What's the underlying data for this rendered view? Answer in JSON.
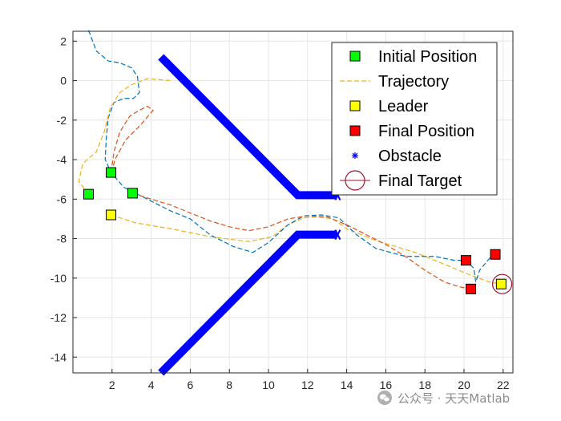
{
  "chart_data": {
    "type": "line",
    "title": "",
    "xlabel": "",
    "ylabel": "",
    "xlim": [
      0,
      22.5
    ],
    "ylim": [
      -14.8,
      2.5
    ],
    "xticks": [
      2,
      4,
      6,
      8,
      10,
      12,
      14,
      16,
      18,
      20,
      22
    ],
    "yticks": [
      2,
      0,
      -2,
      -4,
      -6,
      -8,
      -10,
      -12,
      -14
    ],
    "grid": true,
    "legend_position": "top-right",
    "legend": [
      {
        "label": "Initial Position",
        "marker": "square",
        "color": "#00ff00"
      },
      {
        "label": "Trajectory",
        "marker": "dashed-line",
        "color": "#edb120"
      },
      {
        "label": "Leader",
        "marker": "square",
        "color": "#ffff00"
      },
      {
        "label": "Final Position",
        "marker": "square",
        "color": "#ff0000"
      },
      {
        "label": "Obstacle",
        "marker": "asterisk",
        "color": "#0000ff"
      },
      {
        "label": "Final Target",
        "marker": "circle",
        "color": "#a2142f"
      }
    ],
    "obstacles": [
      {
        "points": [
          [
            4.5,
            1.2
          ],
          [
            11.5,
            -5.8
          ],
          [
            13.5,
            -5.8
          ]
        ]
      },
      {
        "points": [
          [
            4.5,
            -14.8
          ],
          [
            11.5,
            -7.8
          ],
          [
            13.5,
            -7.8
          ]
        ]
      }
    ],
    "initial_positions": [
      [
        0.8,
        -5.75
      ],
      [
        1.95,
        -4.65
      ],
      [
        3.05,
        -5.7
      ]
    ],
    "leader_initial": [
      1.95,
      -6.8
    ],
    "final_positions": [
      [
        20.1,
        -9.1
      ],
      [
        20.35,
        -10.55
      ],
      [
        21.6,
        -8.8
      ]
    ],
    "leader_final": [
      21.9,
      -10.3
    ],
    "final_target": [
      21.95,
      -10.3
    ],
    "series": [
      {
        "color": "#edb120",
        "points": [
          [
            1.95,
            -6.8
          ],
          [
            3.2,
            -7.2
          ],
          [
            5.0,
            -7.5
          ],
          [
            7.0,
            -7.9
          ],
          [
            9.0,
            -8.15
          ],
          [
            10.2,
            -7.9
          ],
          [
            11.0,
            -7.3
          ],
          [
            11.8,
            -6.95
          ],
          [
            12.5,
            -6.9
          ],
          [
            13.3,
            -7.0
          ],
          [
            14.0,
            -7.5
          ],
          [
            15.5,
            -8.1
          ],
          [
            17.5,
            -8.7
          ],
          [
            19.0,
            -9.3
          ],
          [
            20.2,
            -9.8
          ],
          [
            21.3,
            -10.2
          ],
          [
            21.9,
            -10.3
          ]
        ]
      },
      {
        "color": "#0072bd",
        "points": [
          [
            0.8,
            2.55
          ],
          [
            1.2,
            1.5
          ],
          [
            1.8,
            1.0
          ],
          [
            2.4,
            0.9
          ],
          [
            3.0,
            0.65
          ],
          [
            3.3,
            0.2
          ],
          [
            3.4,
            -0.6
          ],
          [
            3.1,
            -0.9
          ],
          [
            2.6,
            -0.9
          ],
          [
            2.1,
            -1.1
          ],
          [
            1.8,
            -1.9
          ],
          [
            1.7,
            -3.0
          ],
          [
            1.65,
            -4.0
          ],
          [
            1.95,
            -4.65
          ],
          [
            2.6,
            -5.4
          ],
          [
            3.8,
            -6.0
          ],
          [
            5.0,
            -6.6
          ],
          [
            6.0,
            -7.0
          ],
          [
            7.0,
            -7.8
          ],
          [
            8.2,
            -8.4
          ],
          [
            9.2,
            -8.7
          ],
          [
            10.0,
            -8.2
          ],
          [
            11.0,
            -7.3
          ],
          [
            11.8,
            -6.85
          ],
          [
            12.7,
            -6.8
          ],
          [
            13.6,
            -6.95
          ],
          [
            14.5,
            -7.8
          ],
          [
            15.5,
            -8.5
          ],
          [
            17.0,
            -8.9
          ],
          [
            18.5,
            -8.9
          ],
          [
            19.5,
            -9.1
          ],
          [
            20.1,
            -9.1
          ],
          [
            20.5,
            -9.5
          ],
          [
            20.6,
            -10.2
          ],
          [
            20.8,
            -9.6
          ],
          [
            21.3,
            -9.0
          ],
          [
            21.6,
            -8.8
          ]
        ]
      },
      {
        "color": "#d95319",
        "points": [
          [
            3.05,
            -5.7
          ],
          [
            4.0,
            -6.0
          ],
          [
            5.0,
            -6.3
          ],
          [
            6.0,
            -6.7
          ],
          [
            7.0,
            -7.1
          ],
          [
            8.0,
            -7.4
          ],
          [
            9.0,
            -7.6
          ],
          [
            10.0,
            -7.4
          ],
          [
            11.0,
            -7.0
          ],
          [
            12.0,
            -6.85
          ],
          [
            13.0,
            -6.9
          ],
          [
            14.0,
            -7.3
          ],
          [
            15.0,
            -7.8
          ],
          [
            16.0,
            -8.3
          ],
          [
            17.0,
            -8.9
          ],
          [
            18.0,
            -9.6
          ],
          [
            19.0,
            -10.2
          ],
          [
            19.8,
            -10.45
          ],
          [
            20.35,
            -10.55
          ]
        ]
      },
      {
        "color": "#d95319",
        "points": [
          [
            1.95,
            -4.65
          ],
          [
            2.1,
            -3.6
          ],
          [
            2.4,
            -2.6
          ],
          [
            2.9,
            -1.8
          ],
          [
            3.4,
            -1.5
          ],
          [
            3.8,
            -1.3
          ],
          [
            4.1,
            -1.5
          ],
          [
            3.5,
            -2.2
          ],
          [
            2.7,
            -3.0
          ],
          [
            2.2,
            -3.9
          ],
          [
            1.95,
            -4.65
          ]
        ]
      },
      {
        "color": "#edb120",
        "points": [
          [
            0.8,
            -5.75
          ],
          [
            0.3,
            -5.1
          ],
          [
            0.5,
            -4.2
          ],
          [
            1.2,
            -3.6
          ],
          [
            1.6,
            -2.6
          ],
          [
            1.9,
            -1.4
          ],
          [
            2.4,
            -0.6
          ],
          [
            3.0,
            -0.2
          ],
          [
            3.8,
            0.1
          ],
          [
            5.0,
            0.0
          ]
        ]
      }
    ]
  }
}
